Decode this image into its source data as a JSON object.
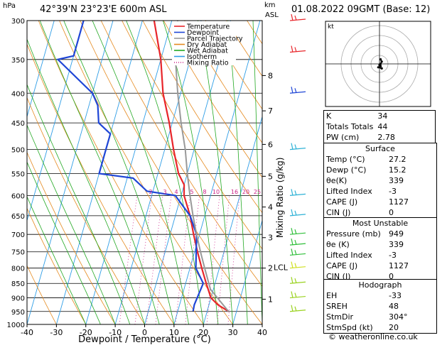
{
  "header": {
    "hpa": "hPa",
    "location": "42°39'N  23°23'E  600m  ASL",
    "km": "km",
    "asl": "ASL",
    "datetime": "01.08.2022  09GMT  (Base: 12)"
  },
  "footer": "© weatheronline.co.uk",
  "chart_data": [
    {
      "type": "line",
      "subtype": "skew-t log-p",
      "xlabel": "Dewpoint / Temperature (°C)",
      "ylabel_right": "Mixing Ratio (g/kg)",
      "xlim": [
        -40,
        40
      ],
      "ylim": [
        1000,
        300
      ],
      "pressure_ticks": [
        300,
        350,
        400,
        450,
        500,
        550,
        600,
        650,
        700,
        750,
        800,
        850,
        900,
        950,
        1000
      ],
      "temp_ticks": [
        -40,
        -30,
        -20,
        -10,
        0,
        10,
        20,
        30,
        40
      ],
      "km_ticks": [
        {
          "label": "8",
          "p": 373
        },
        {
          "label": "7",
          "p": 429
        },
        {
          "label": "6",
          "p": 490
        },
        {
          "label": "5",
          "p": 556
        },
        {
          "label": "4",
          "p": 628
        },
        {
          "label": "3",
          "p": 709
        },
        {
          "label": "2",
          "p": 800
        },
        {
          "label": "1",
          "p": 905
        }
      ],
      "lcl": {
        "label": "LCL",
        "p": 797
      },
      "mixing_ratio_labels": [
        "2",
        "3",
        "4",
        "5",
        "8",
        "10",
        "16",
        "20",
        "25"
      ],
      "legend": [
        {
          "name": "Temperature",
          "color": "#e8252a"
        },
        {
          "name": "Dewpoint",
          "color": "#1f46d6"
        },
        {
          "name": "Parcel Trajectory",
          "color": "#999999"
        },
        {
          "name": "Dry Adiabat",
          "color": "#e58a1f"
        },
        {
          "name": "Wet Adiabat",
          "color": "#22a822"
        },
        {
          "name": "Isotherm",
          "color": "#2f9ee6"
        },
        {
          "name": "Mixing Ratio",
          "color": "#cc2288"
        }
      ],
      "series": [
        {
          "name": "Temperature",
          "points": [
            [
              27.2,
              949
            ],
            [
              23,
              925
            ],
            [
              20,
              900
            ],
            [
              17,
              850
            ],
            [
              14,
              800
            ],
            [
              11,
              750
            ],
            [
              8,
              700
            ],
            [
              5,
              650
            ],
            [
              1,
              600
            ],
            [
              0,
              575
            ],
            [
              -3,
              550
            ],
            [
              -7,
              500
            ],
            [
              -11,
              450
            ],
            [
              -16,
              400
            ],
            [
              -20,
              350
            ],
            [
              -26,
              300
            ]
          ]
        },
        {
          "name": "Dewpoint",
          "points": [
            [
              15.2,
              949
            ],
            [
              15,
              925
            ],
            [
              16,
              850
            ],
            [
              12,
              800
            ],
            [
              9,
              700
            ],
            [
              5,
              650
            ],
            [
              -2,
              600
            ],
            [
              -12,
              590
            ],
            [
              -18,
              560
            ],
            [
              -30,
              550
            ],
            [
              -30,
              500
            ],
            [
              -30,
              470
            ],
            [
              -35,
              450
            ],
            [
              -37,
              420
            ],
            [
              -40,
              400
            ],
            [
              -55,
              350
            ],
            [
              -50,
              345
            ],
            [
              -50,
              300
            ]
          ]
        },
        {
          "name": "Parcel Trajectory",
          "points": [
            [
              27.2,
              949
            ],
            [
              19,
              870
            ],
            [
              15,
              800
            ],
            [
              12,
              750
            ],
            [
              9,
              700
            ],
            [
              6,
              650
            ],
            [
              3,
              600
            ],
            [
              0,
              550
            ],
            [
              -3,
              500
            ],
            [
              -7,
              450
            ],
            [
              -11,
              400
            ],
            [
              -15,
              350
            ],
            [
              -18,
              300
            ]
          ]
        }
      ]
    },
    {
      "type": "scatter",
      "subtype": "hodograph",
      "unit": "kt",
      "points": [
        [
          1,
          4
        ],
        [
          2,
          2
        ],
        [
          1,
          0
        ],
        [
          0,
          -1
        ],
        [
          1,
          -2
        ],
        [
          -1,
          -3
        ],
        [
          2,
          -4
        ]
      ]
    }
  ],
  "indices": [
    {
      "label": "K",
      "value": "34"
    },
    {
      "label": "Totals Totals",
      "value": "44"
    },
    {
      "label": "PW (cm)",
      "value": "2.78"
    }
  ],
  "surface": {
    "title": "Surface",
    "rows": [
      {
        "label": "Temp (°C)",
        "value": "27.2"
      },
      {
        "label": "Dewp (°C)",
        "value": "15.2"
      },
      {
        "label": "θe(K)",
        "value": "339"
      },
      {
        "label": "Lifted Index",
        "value": "-3"
      },
      {
        "label": "CAPE (J)",
        "value": "1127"
      },
      {
        "label": "CIN (J)",
        "value": "0"
      }
    ]
  },
  "most_unstable": {
    "title": "Most Unstable",
    "rows": [
      {
        "label": "Pressure (mb)",
        "value": "949"
      },
      {
        "label": "θe (K)",
        "value": "339"
      },
      {
        "label": "Lifted Index",
        "value": "-3"
      },
      {
        "label": "CAPE (J)",
        "value": "1127"
      },
      {
        "label": "CIN (J)",
        "value": "0"
      }
    ]
  },
  "hodograph_box": {
    "title": "Hodograph",
    "rows": [
      {
        "label": "EH",
        "value": "-33"
      },
      {
        "label": "SREH",
        "value": "48"
      },
      {
        "label": "StmDir",
        "value": "304°"
      },
      {
        "label": "StmSpd (kt)",
        "value": "20"
      }
    ]
  },
  "wind_barbs": [
    {
      "p": 300,
      "color": "#e8252a"
    },
    {
      "p": 340,
      "color": "#e8252a"
    },
    {
      "p": 400,
      "color": "#1f46d6"
    },
    {
      "p": 500,
      "color": "#2fb2d6"
    },
    {
      "p": 600,
      "color": "#2fb2d6"
    },
    {
      "p": 650,
      "color": "#2fb2d6"
    },
    {
      "p": 700,
      "color": "#2fbf3a"
    },
    {
      "p": 730,
      "color": "#2fbf3a"
    },
    {
      "p": 760,
      "color": "#2fbf3a"
    },
    {
      "p": 800,
      "color": "#cfe01f"
    },
    {
      "p": 850,
      "color": "#9ad21f"
    },
    {
      "p": 900,
      "color": "#9ad21f"
    },
    {
      "p": 950,
      "color": "#9ad21f"
    }
  ],
  "hodo_label": "kt"
}
